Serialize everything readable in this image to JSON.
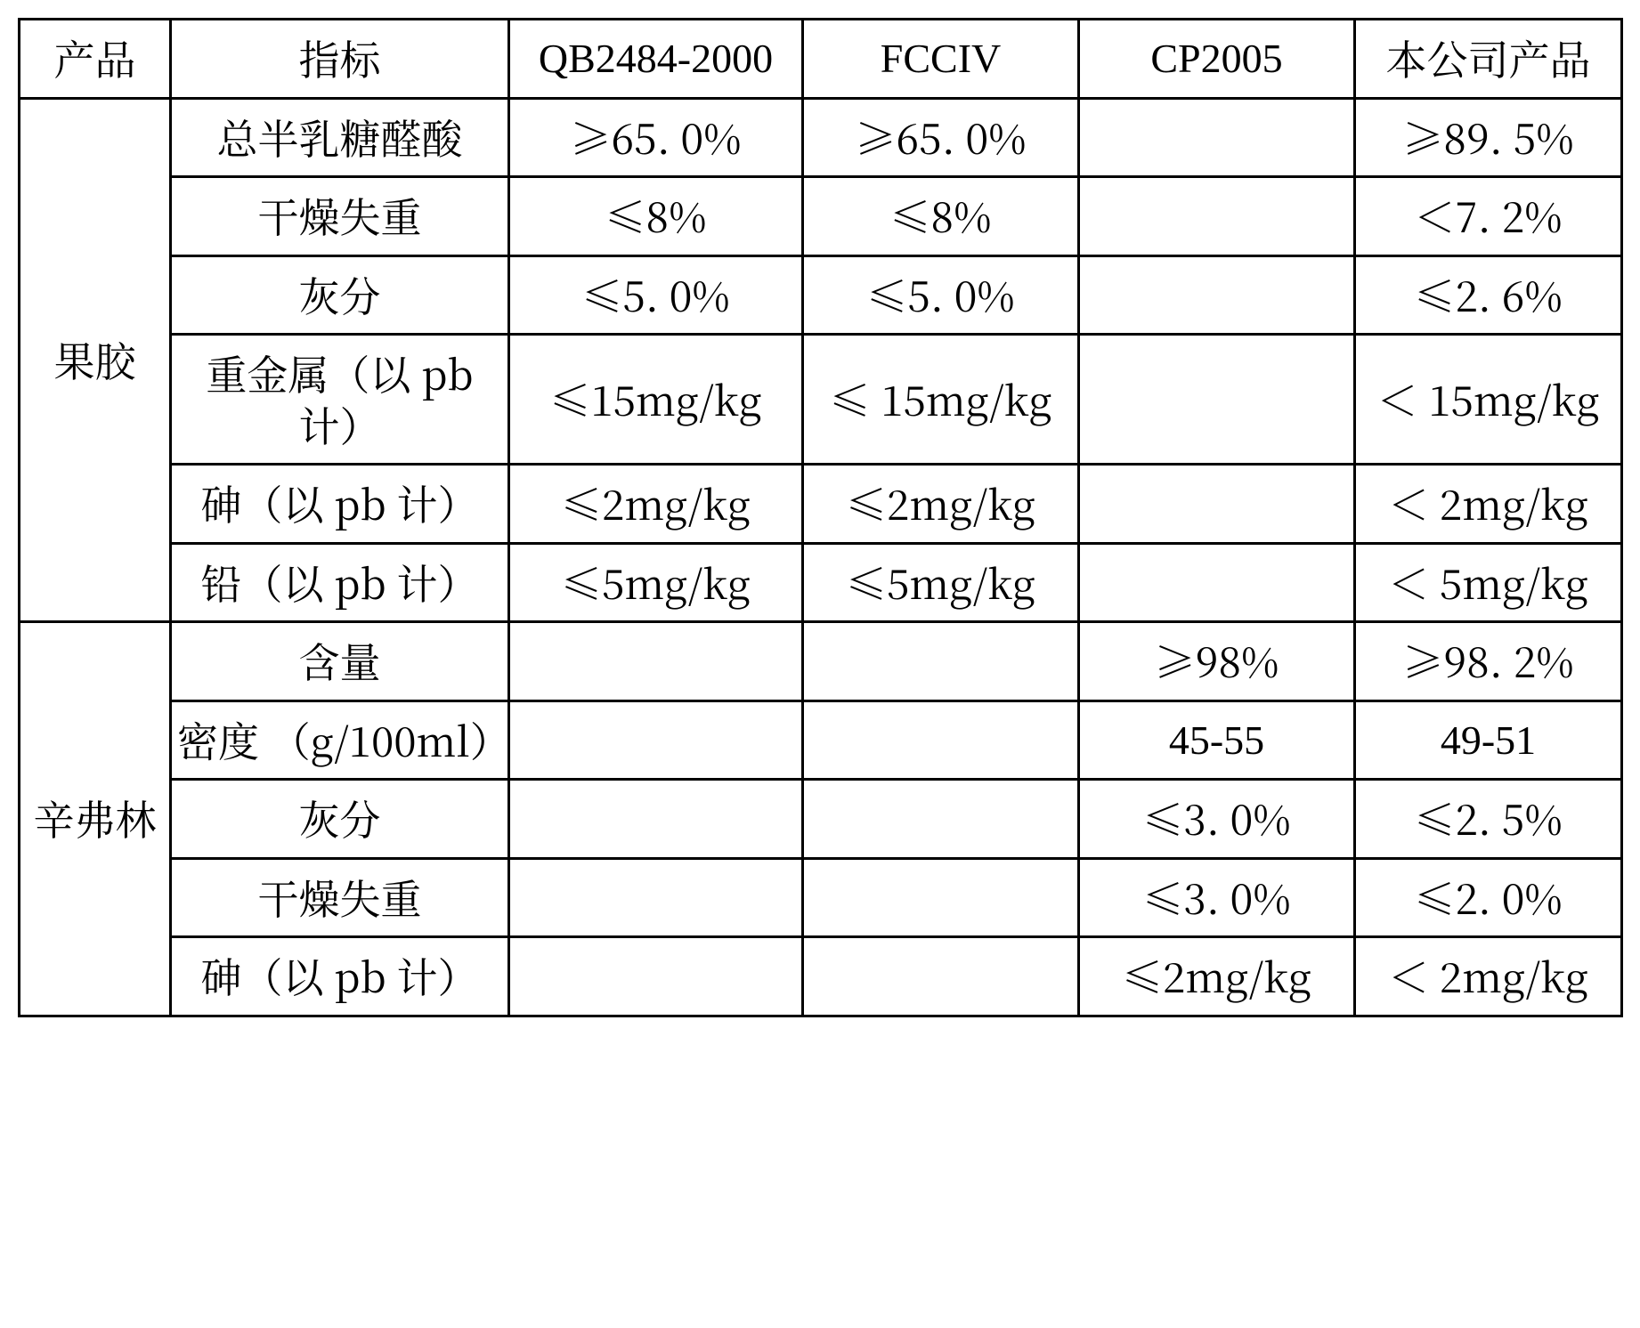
{
  "head": {
    "product": "产品",
    "indicator": "指标",
    "qb": "QB2484-2000",
    "fcc": "FCCIV",
    "cp": "CP2005",
    "company": "本公司产品"
  },
  "group1": {
    "name": "果胶"
  },
  "group2": {
    "name": "辛弗林"
  },
  "r1": {
    "ind": "总半乳糖醛酸",
    "qb": "≥65. 0%",
    "fcc": "≥65. 0%",
    "cp": "",
    "co": "≥89. 5%"
  },
  "r2": {
    "ind": "干燥失重",
    "qb": "≤8%",
    "fcc": "≤8%",
    "cp": "",
    "co": "＜7. 2%"
  },
  "r3": {
    "ind": "灰分",
    "qb": "≤5. 0%",
    "fcc": "≤5. 0%",
    "cp": "",
    "co": "≤2. 6%"
  },
  "r4": {
    "ind": "重金属（以 pb 计）",
    "qb": "≤15mg/kg",
    "fcc": "≤ 15mg/kg",
    "cp": "",
    "co": "＜ 15mg/kg"
  },
  "r5": {
    "ind": "砷（以 pb 计）",
    "qb": "≤2mg/kg",
    "fcc": "≤2mg/kg",
    "cp": "",
    "co": "＜ 2mg/kg"
  },
  "r6": {
    "ind": "铅（以 pb 计）",
    "qb": "≤5mg/kg",
    "fcc": "≤5mg/kg",
    "cp": "",
    "co": "＜ 5mg/kg"
  },
  "r7": {
    "ind": "含量",
    "qb": "",
    "fcc": "",
    "cp": "≥98%",
    "co": "≥98. 2%"
  },
  "r8": {
    "ind": "密度 （g/100ml）",
    "qb": "",
    "fcc": "",
    "cp": "45-55",
    "co": "49-51"
  },
  "r9": {
    "ind": "灰分",
    "qb": "",
    "fcc": "",
    "cp": "≤3. 0%",
    "co": "≤2. 5%"
  },
  "r10": {
    "ind": "干燥失重",
    "qb": "",
    "fcc": "",
    "cp": "≤3. 0%",
    "co": "≤2. 0%"
  },
  "r11": {
    "ind": "砷（以 pb 计）",
    "qb": "",
    "fcc": "",
    "cp": "≤2mg/kg",
    "co": "＜ 2mg/kg"
  }
}
